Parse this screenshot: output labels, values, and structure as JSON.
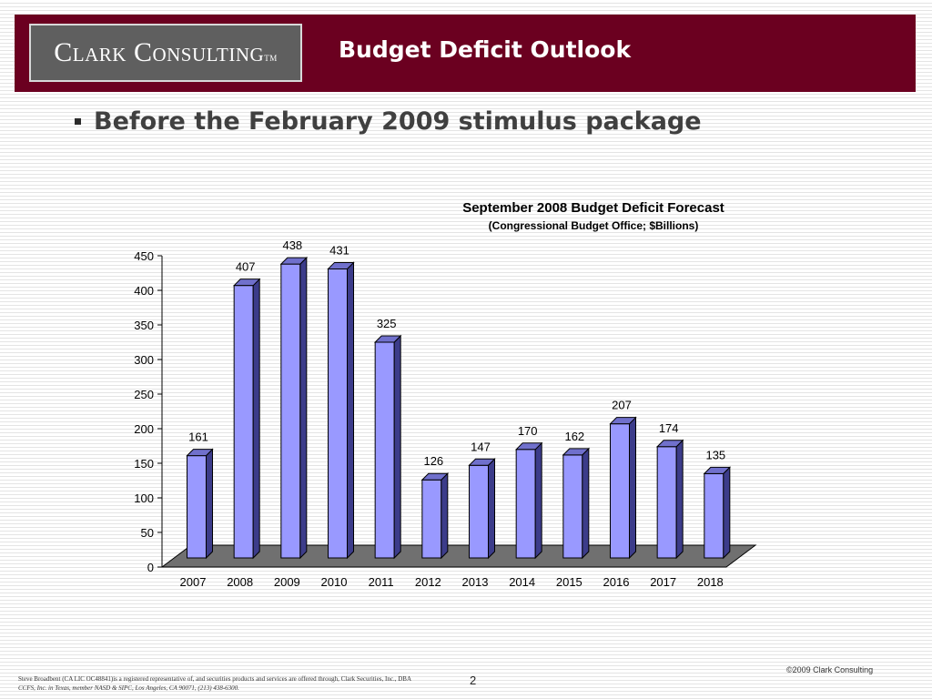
{
  "header": {
    "logo_text": "Clark Consulting",
    "logo_mark": "TM",
    "title": "Budget Deficit Outlook"
  },
  "bullet": {
    "text": "Before the February 2009 stimulus package"
  },
  "colors": {
    "header_band": "#6b0020",
    "bar_front": "#9999ff",
    "bar_side": "#3c3c8a",
    "bar_top": "#7070cc",
    "floor": "#707070"
  },
  "chart_data": {
    "type": "bar",
    "title": "September 2008 Budget Deficit Forecast",
    "subtitle": "(Congressional Budget Office; $Billions)",
    "categories": [
      "2007",
      "2008",
      "2009",
      "2010",
      "2011",
      "2012",
      "2013",
      "2014",
      "2015",
      "2016",
      "2017",
      "2018"
    ],
    "values": [
      161,
      407,
      438,
      431,
      325,
      126,
      147,
      170,
      162,
      207,
      174,
      135
    ],
    "data_labels": [
      "161",
      "407",
      "438",
      "431",
      "325",
      "126",
      "147",
      "170",
      "162",
      "207",
      "174",
      "135"
    ],
    "ylim": [
      0,
      450
    ],
    "yticks": [
      "0",
      "50",
      "100",
      "150",
      "200",
      "250",
      "300",
      "350",
      "400",
      "450"
    ],
    "xlabel": "",
    "ylabel": "",
    "grid": false,
    "legend": "none",
    "style": "3d-column"
  },
  "footer": {
    "disclaimer_line1": "Steve Broadbent  (CA LIC OC48841)is a registered representative of, and securities products and services are offered through, Clark Securities, Inc., DBA",
    "disclaimer_line2": "CCFS, Inc. in Texas, member NASD & SIPC, Los Angeles, CA  90071, (213) 438-6300.",
    "page_number": "2",
    "copyright": "©2009 Clark Consulting"
  }
}
